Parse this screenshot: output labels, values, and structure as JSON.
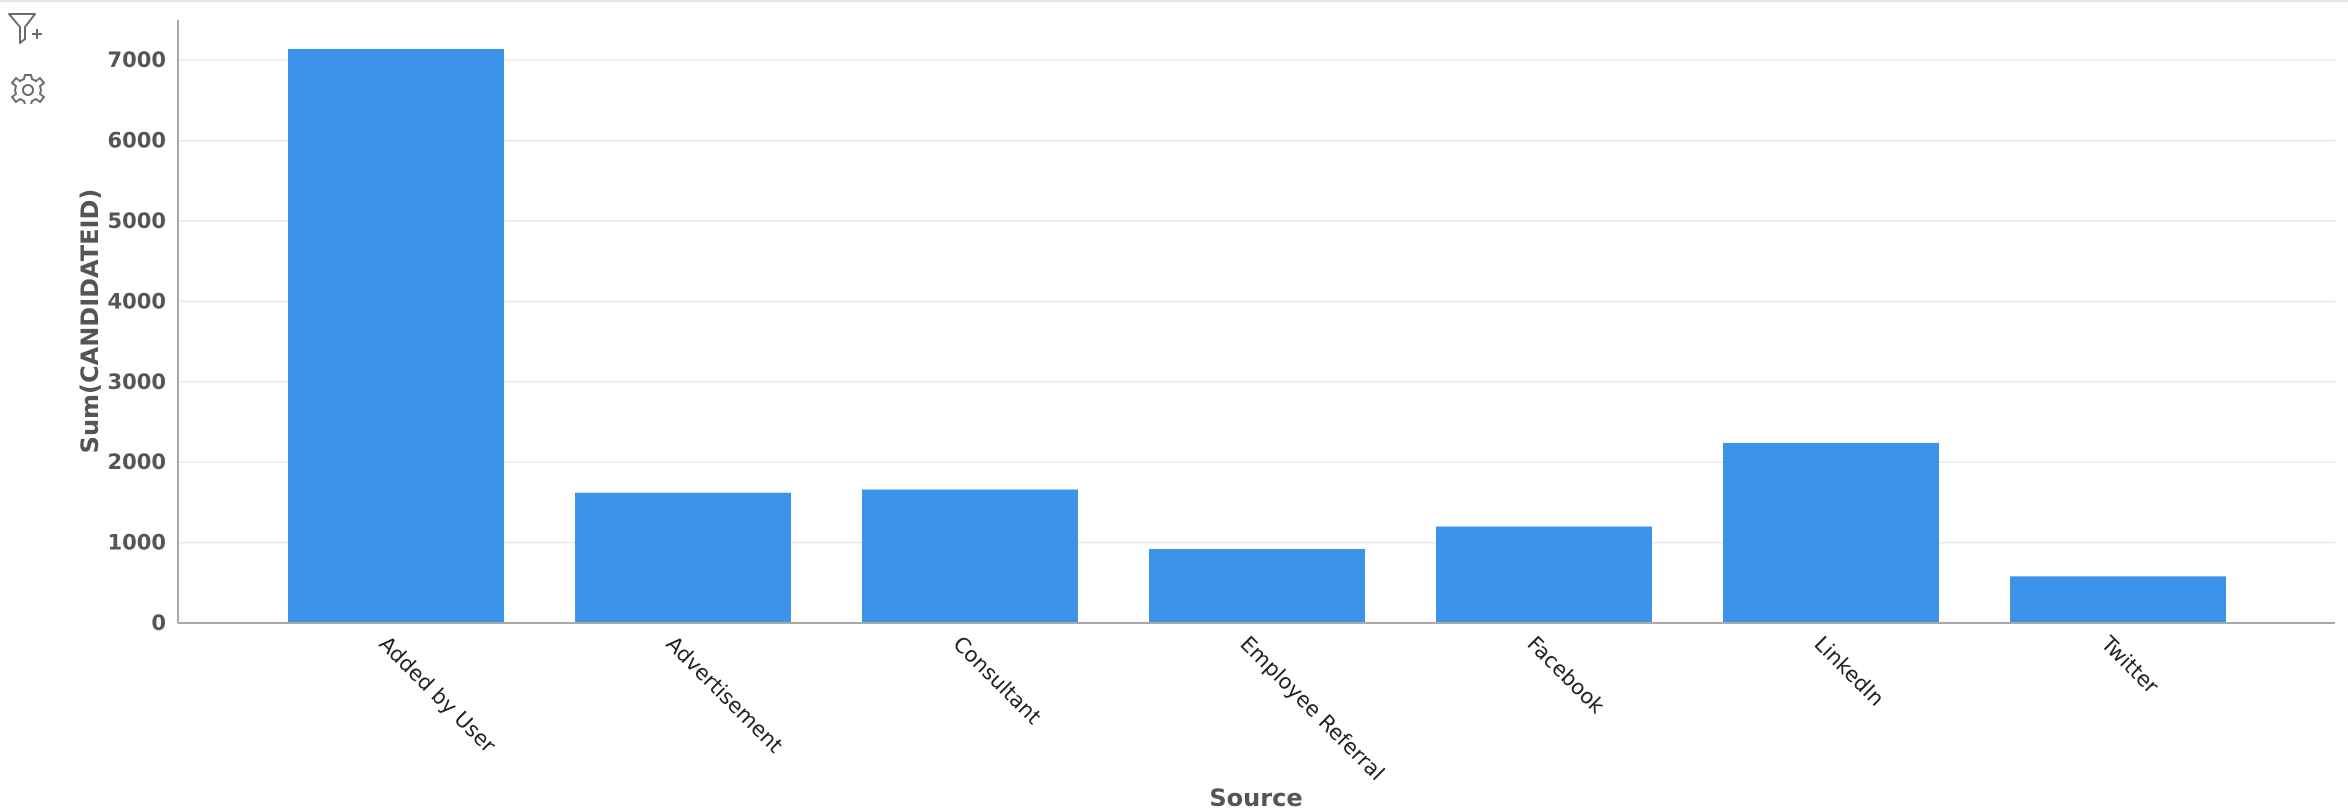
{
  "toolbar": {
    "items": [
      {
        "name": "add-filter",
        "icon": "filter-plus-icon"
      },
      {
        "name": "settings",
        "icon": "gear-icon"
      }
    ]
  },
  "chart_data": {
    "type": "bar",
    "categories": [
      "Added by User",
      "Advertisement",
      "Consultant",
      "Employee Referral",
      "Facebook",
      "LinkedIn",
      "Twitter"
    ],
    "values": [
      7140,
      1620,
      1660,
      920,
      1200,
      2240,
      580
    ],
    "xlabel": "Source",
    "ylabel": "Sum(CANDIDATEID)",
    "ylim": [
      0,
      7500
    ],
    "yticks": [
      0,
      1000,
      2000,
      3000,
      4000,
      5000,
      6000,
      7000
    ],
    "grid": true,
    "legend": "none",
    "colors": {
      "bar": "#3c93ea",
      "grid": "#e9e9e9",
      "axis": "#a9a9a9"
    }
  }
}
